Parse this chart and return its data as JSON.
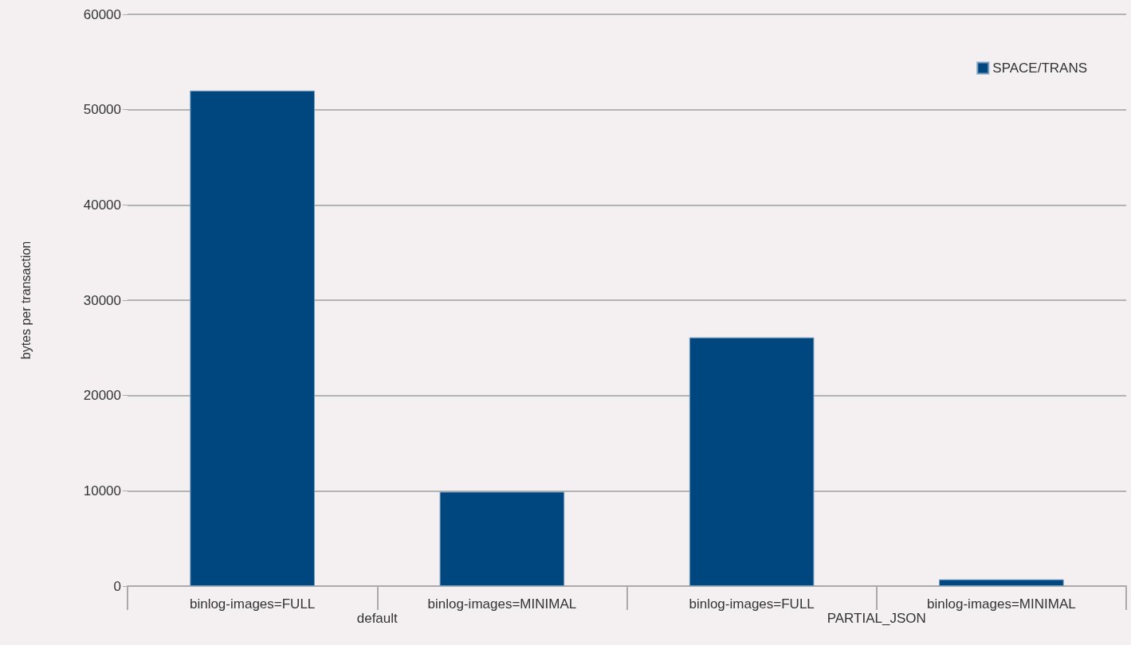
{
  "chart_data": {
    "type": "bar",
    "ylabel": "bytes per transaction",
    "categories": [
      "binlog-images=FULL",
      "binlog-images=MINIMAL",
      "binlog-images=FULL",
      "binlog-images=MINIMAL"
    ],
    "series": [
      {
        "name": "SPACE/TRANS",
        "color": "#00467f",
        "values": [
          52000,
          9900,
          26100,
          700
        ]
      }
    ],
    "annotations": [
      "default",
      "PARTIAL_JSON"
    ],
    "ylim": [
      0,
      60000
    ],
    "yticks": [
      0,
      10000,
      20000,
      30000,
      40000,
      50000,
      60000
    ],
    "grid": "y",
    "legend": "top right"
  }
}
